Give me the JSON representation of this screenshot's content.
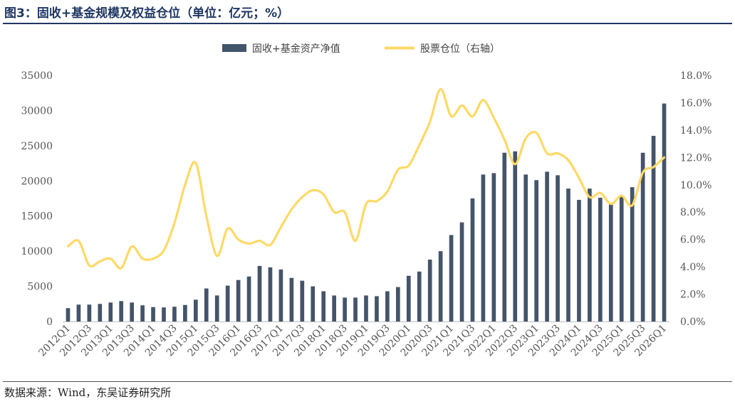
{
  "header": {
    "title": "图3：固收+基金规模及权益仓位（单位：亿元；%）"
  },
  "footer": {
    "source": "数据来源：Wind，东吴证券研究所"
  },
  "colors": {
    "bar": "#44546a",
    "line": "#ffd966",
    "title": "#1f3763"
  },
  "chart_data": {
    "type": "bar",
    "title": "",
    "legend_position": "top-center",
    "grid": false,
    "categories": [
      "2012Q1",
      "2012Q2",
      "2012Q3",
      "2012Q4",
      "2013Q1",
      "2013Q2",
      "2013Q3",
      "2013Q4",
      "2014Q1",
      "2014Q2",
      "2014Q3",
      "2014Q4",
      "2015Q1",
      "2015Q2",
      "2015Q3",
      "2015Q4",
      "2016Q1",
      "2016Q2",
      "2016Q3",
      "2016Q4",
      "2017Q1",
      "2017Q2",
      "2017Q3",
      "2017Q4",
      "2018Q1",
      "2018Q2",
      "2018Q3",
      "2018Q4",
      "2019Q1",
      "2019Q2",
      "2019Q3",
      "2019Q4",
      "2020Q1",
      "2020Q2",
      "2020Q3",
      "2020Q4",
      "2021Q1",
      "2021Q2",
      "2021Q3",
      "2021Q4",
      "2022Q1",
      "2022Q2",
      "2022Q3",
      "2022Q4",
      "2023Q1",
      "2023Q2",
      "2023Q3",
      "2023Q4",
      "2024Q1",
      "2024Q2",
      "2024Q3",
      "2024Q4",
      "2025Q1",
      "2025Q2",
      "2025Q3",
      "2025Q4",
      "2026Q1"
    ],
    "y_left": {
      "min": 0,
      "max": 35000,
      "ticks": [
        0,
        5000,
        10000,
        15000,
        20000,
        25000,
        30000,
        35000
      ]
    },
    "y_right": {
      "min": 0,
      "max": 18,
      "ticks": [
        "0.0%",
        "2.0%",
        "4.0%",
        "6.0%",
        "8.0%",
        "10.0%",
        "12.0%",
        "14.0%",
        "16.0%",
        "18.0%"
      ]
    },
    "series": [
      {
        "name": "固收+基金资产净值",
        "type": "bar",
        "axis": "left",
        "values": [
          1900,
          2400,
          2400,
          2500,
          2700,
          2900,
          2700,
          2300,
          2050,
          2000,
          2100,
          2350,
          3100,
          4700,
          3700,
          5100,
          5900,
          6400,
          7900,
          7700,
          7400,
          6200,
          5800,
          5000,
          4300,
          3700,
          3400,
          3400,
          3700,
          3600,
          4300,
          4900,
          6500,
          7100,
          8800,
          10000,
          12300,
          14100,
          17500,
          20900,
          21100,
          24000,
          24200,
          20900,
          20100,
          21300,
          20800,
          18900,
          17300,
          18900,
          17600,
          16700,
          17900,
          19100,
          24000,
          26400,
          31000
        ]
      },
      {
        "name": "股票仓位（右轴）",
        "type": "line",
        "axis": "right",
        "values": [
          5.5,
          5.9,
          4.1,
          4.4,
          4.6,
          3.9,
          5.5,
          4.6,
          4.6,
          5.2,
          7.2,
          10.0,
          11.6,
          7.7,
          4.8,
          6.8,
          6.0,
          5.7,
          5.9,
          5.6,
          6.9,
          8.2,
          9.1,
          9.6,
          9.3,
          8.0,
          8.0,
          5.9,
          8.6,
          8.8,
          9.5,
          11.1,
          11.4,
          12.9,
          14.6,
          17.0,
          15.0,
          15.8,
          15.0,
          16.2,
          14.9,
          13.3,
          11.5,
          13.4,
          13.8,
          12.3,
          12.3,
          11.8,
          10.5,
          9.1,
          9.4,
          8.6,
          9.2,
          8.5,
          10.9,
          11.3,
          12.0
        ]
      }
    ]
  }
}
